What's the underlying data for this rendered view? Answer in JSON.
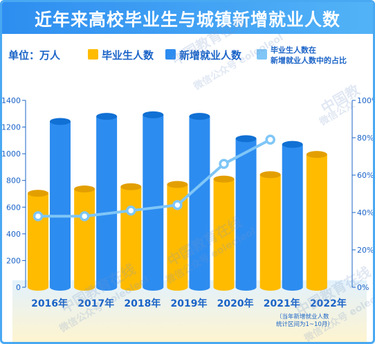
{
  "title": "近年来高校毕业生与城镇新增就业人数",
  "unit_label": "单位：万人",
  "legend": {
    "graduates": "毕业生人数",
    "new_jobs": "新增就业人数",
    "ratio_line1": "毕业生人数在",
    "ratio_line2": "新增就业人数中的占比"
  },
  "colors": {
    "graduates": "#ffbb00",
    "new_jobs": "#2d8cf0",
    "ratio": "#7fc6f7",
    "axis_text": "#1a63c7"
  },
  "footnote": [
    "（当年新增就业人数",
    "统计区间为1~10月）"
  ],
  "watermarks": [
    "中国教育在线",
    "微信公众号 eoleoleol",
    "中国教",
    "微信公众"
  ],
  "chart_data": {
    "type": "bar",
    "categories": [
      "2016年",
      "2017年",
      "2018年",
      "2019年",
      "2020年",
      "2021年",
      "2022年"
    ],
    "series": [
      {
        "name": "毕业生人数",
        "type": "bar",
        "axis": "left",
        "values": [
          704,
          736,
          753,
          770,
          810,
          843,
          995
        ]
      },
      {
        "name": "新增就业人数",
        "type": "bar",
        "axis": "left",
        "values": [
          1242,
          1280,
          1292,
          1280,
          1113,
          1070,
          null
        ]
      },
      {
        "name": "毕业生人数在新增就业人数中的占比",
        "type": "line",
        "axis": "right",
        "values": [
          38,
          38,
          41,
          44,
          66,
          79,
          null
        ]
      }
    ],
    "y_left": {
      "range": [
        0,
        1400
      ],
      "ticks": [
        0,
        200,
        400,
        600,
        800,
        1000,
        1200,
        1400
      ]
    },
    "y_right": {
      "range": [
        0,
        100
      ],
      "ticks": [
        "0%",
        "20%",
        "40%",
        "60%",
        "80%",
        "100%"
      ]
    },
    "legend_position": "top"
  }
}
